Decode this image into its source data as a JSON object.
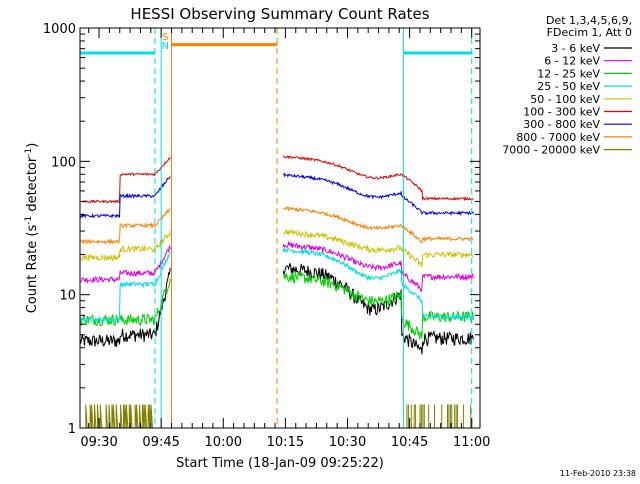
{
  "chart_data": {
    "type": "line",
    "title": "HESSI Observing Summary Count Rates",
    "xlabel": "Start Time (18-Jan-09 09:25:22)",
    "ylabel_main": "Count Rate (s",
    "ylabel_exp1": "-1",
    "ylabel_mid": " detector",
    "ylabel_exp2": "-1",
    "ylabel_end": ")",
    "y_scale": "log",
    "ylim": [
      1,
      1000
    ],
    "xlim_min": [
      25.4,
      62.0
    ],
    "x_ticks": [
      {
        "label": "09:30",
        "m": 30
      },
      {
        "label": "09:45",
        "m": 45
      },
      {
        "label": "10:00",
        "m": 60
      },
      {
        "label": "10:15",
        "m": 75
      },
      {
        "label": "10:30",
        "m": 90
      },
      {
        "label": "10:45",
        "m": 105
      },
      {
        "label": "11:00",
        "m": 120
      }
    ],
    "y_ticks": [
      {
        "label": "1",
        "v": 1
      },
      {
        "label": "10",
        "v": 10
      },
      {
        "label": "100",
        "v": 100
      },
      {
        "label": "1000",
        "v": 1000
      }
    ],
    "legend_header": [
      "Det 1,3,4,5,6,9,",
      "FDecim 1, Att 0"
    ],
    "legend_position": "right",
    "series": [
      {
        "name": "3 - 6 keV",
        "color": "#000000",
        "night": 4.5,
        "day": 5.0,
        "peak": 8.5,
        "rise": 16,
        "noise": 0.12
      },
      {
        "name": "6 - 12 keV",
        "color": "#e000e0",
        "night": 13,
        "day": 14.5,
        "peak": 20,
        "rise": 24,
        "noise": 0.05
      },
      {
        "name": "12 - 25 keV",
        "color": "#00d000",
        "night": 6.5,
        "day": 6.5,
        "peak": 11,
        "rise": 14,
        "noise": 0.1
      },
      {
        "name": "25 - 50 keV",
        "color": "#00e0e0",
        "night": 6.5,
        "day": 12,
        "peak": 16,
        "rise": 22,
        "noise": 0.04
      },
      {
        "name": "50 - 100 keV",
        "color": "#d0c000",
        "night": 19,
        "day": 22,
        "peak": 28,
        "rise": 30,
        "noise": 0.05
      },
      {
        "name": "100 - 300 keV",
        "color": "#e00000",
        "night": 50,
        "day": 80,
        "peak": 95,
        "rise": 110,
        "noise": 0.02
      },
      {
        "name": "300 - 800 keV",
        "color": "#0000e0",
        "night": 39,
        "day": 55,
        "peak": 68,
        "rise": 80,
        "noise": 0.025
      },
      {
        "name": "800 - 7000 keV",
        "color": "#ff8000",
        "night": 25,
        "day": 33,
        "peak": 40,
        "rise": 45,
        "noise": 0.03
      },
      {
        "name": "7000 - 20000 keV",
        "color": "#808000",
        "night": 1.5,
        "day": 1.0,
        "peak": 1.0,
        "rise": 1.2,
        "noise": 0.0
      }
    ],
    "flag_markers": [
      {
        "label": "S",
        "color": "#ff8000"
      },
      {
        "label": "N",
        "color": "#00e0e0"
      }
    ],
    "saa": {
      "color": "#ff8000",
      "start_m": 47.5,
      "end_m": 73.0,
      "level": 750
    },
    "night": [
      {
        "color": "#00e0e0",
        "start_m": 25.4,
        "end_m": 43.5,
        "level": 650
      },
      {
        "color": "#00e0e0",
        "start_m": 103.5,
        "end_m": 120.2,
        "level": 650
      }
    ]
  },
  "timestamp": "11-Feb-2010 23:38"
}
